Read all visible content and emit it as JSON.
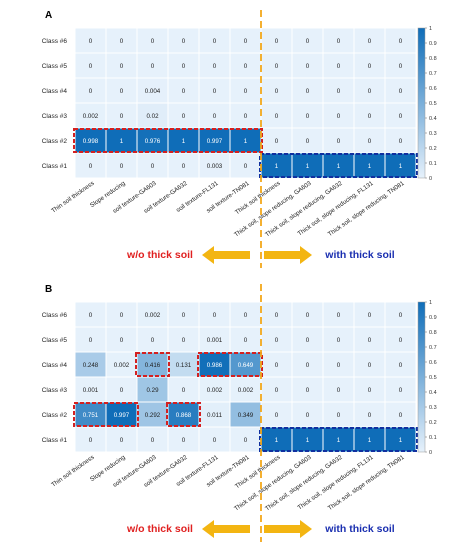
{
  "colors": {
    "cell_low": "#e6f1fb",
    "cell_high": "#0f6db8",
    "grid": "#ffffff",
    "highlight_red": "#d42020",
    "highlight_blue": "#1030a0",
    "divider": "#f3a81b",
    "label_red": "#e02020",
    "label_blue": "#1a2fb0",
    "arrow": "#f3b512"
  },
  "chart_data": [
    {
      "type": "heatmap",
      "panel_label": "A",
      "rows": [
        "Class #6",
        "Class #5",
        "Class #4",
        "Class #3",
        "Class #2",
        "Class #1"
      ],
      "columns": [
        "Thin soil thickness",
        "Slope reducing",
        "soil texture-GA603",
        "soil texture-GA632",
        "soil texture-FL131",
        "soil texture-TN081",
        "Thick soil thickness",
        "Thick soil, slope reducing, GA603",
        "Thick soil, slope reducing, GA632",
        "Thick soil, slope reducing, FL131",
        "Thick soil, slope reducing, TN081"
      ],
      "values": [
        [
          "0",
          "0",
          "0",
          "0",
          "0",
          "0",
          "0",
          "0",
          "0",
          "0",
          "0"
        ],
        [
          "0",
          "0",
          "0",
          "0",
          "0",
          "0",
          "0",
          "0",
          "0",
          "0",
          "0"
        ],
        [
          "0",
          "0",
          "0.004",
          "0",
          "0",
          "0",
          "0",
          "0",
          "0",
          "0",
          "0"
        ],
        [
          "0.002",
          "0",
          "0.02",
          "0",
          "0",
          "0",
          "0",
          "0",
          "0",
          "0",
          "0"
        ],
        [
          "0.998",
          "1",
          "0.976",
          "1",
          "0.997",
          "1",
          "0",
          "0",
          "0",
          "0",
          "0"
        ],
        [
          "0",
          "0",
          "0",
          "0",
          "0.003",
          "0",
          "1",
          "1",
          "1",
          "1",
          "1"
        ]
      ],
      "colorbar": {
        "min": 0,
        "max": 1,
        "ticks": [
          "0",
          "0.1",
          "0.2",
          "0.3",
          "0.4",
          "0.5",
          "0.6",
          "0.7",
          "0.8",
          "0.9",
          "1"
        ]
      },
      "highlights": [
        {
          "row": 4,
          "col_start": 0,
          "col_end": 5,
          "color": "red"
        },
        {
          "row": 5,
          "col_start": 6,
          "col_end": 10,
          "color": "blue"
        }
      ],
      "label_left": "w/o thick soil",
      "label_right": "with thick soil"
    },
    {
      "type": "heatmap",
      "panel_label": "B",
      "rows": [
        "Class #6",
        "Class #5",
        "Class #4",
        "Class #3",
        "Class #2",
        "Class #1"
      ],
      "columns": [
        "Thin soil thickness",
        "Slope reducing",
        "soil texture-GA603",
        "soil texture-GA632",
        "soil texture-FL131",
        "soil texture-TN081",
        "Thick soil thickness",
        "Thick soil, slope reducing, GA603",
        "Thick soil, slope reducing, GA632",
        "Thick soil, slope reducing, FL131",
        "Thick soil, slope reducing, TN081"
      ],
      "values": [
        [
          "0",
          "0",
          "0.002",
          "0",
          "0",
          "0",
          "0",
          "0",
          "0",
          "0",
          "0"
        ],
        [
          "0",
          "0",
          "0",
          "0",
          "0.001",
          "0",
          "0",
          "0",
          "0",
          "0",
          "0"
        ],
        [
          "0.248",
          "0.002",
          "0.416",
          "0.131",
          "0.986",
          "0.649",
          "0",
          "0",
          "0",
          "0",
          "0"
        ],
        [
          "0.001",
          "0",
          "0.29",
          "0",
          "0.002",
          "0.002",
          "0",
          "0",
          "0",
          "0",
          "0"
        ],
        [
          "0.751",
          "0.997",
          "0.292",
          "0.868",
          "0.011",
          "0.349",
          "0",
          "0",
          "0",
          "0",
          "0"
        ],
        [
          "0",
          "0",
          "0",
          "0",
          "0",
          "0",
          "1",
          "1",
          "1",
          "1",
          "1"
        ]
      ],
      "colorbar": {
        "min": 0,
        "max": 1,
        "ticks": [
          "0",
          "0.1",
          "0.2",
          "0.3",
          "0.4",
          "0.5",
          "0.6",
          "0.7",
          "0.8",
          "0.9",
          "1"
        ]
      },
      "highlights": [
        {
          "row": 4,
          "col_start": 0,
          "col_end": 1,
          "color": "red"
        },
        {
          "row": 2,
          "col_start": 2,
          "col_end": 2,
          "color": "red"
        },
        {
          "row": 4,
          "col_start": 3,
          "col_end": 3,
          "color": "red"
        },
        {
          "row": 2,
          "col_start": 4,
          "col_end": 5,
          "color": "red"
        },
        {
          "row": 5,
          "col_start": 6,
          "col_end": 10,
          "color": "blue"
        }
      ],
      "label_left": "w/o thick soil",
      "label_right": "with thick soil"
    }
  ]
}
